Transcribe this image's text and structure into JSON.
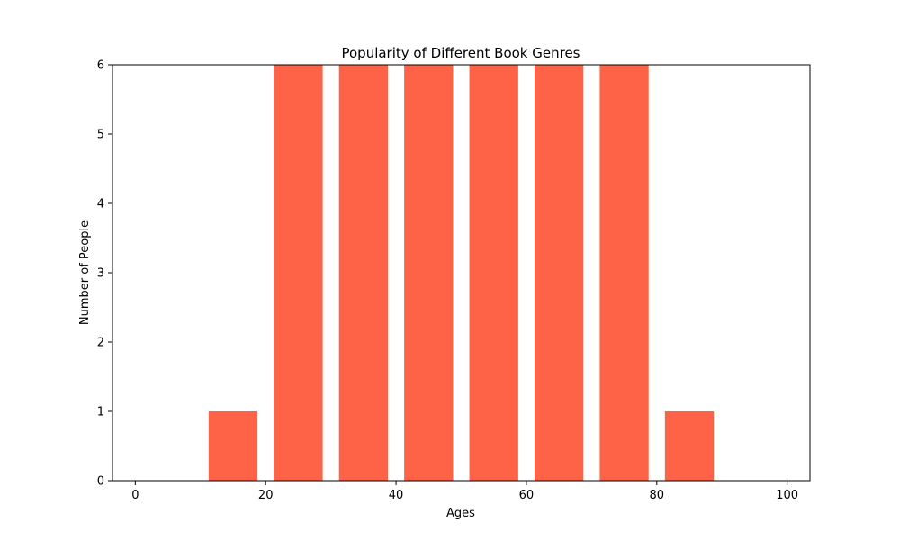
{
  "chart_data": {
    "type": "bar",
    "title": "Popularity of Different Book Genres",
    "xlabel": "Ages",
    "ylabel": "Number of People",
    "bins": [
      [
        0,
        10
      ],
      [
        10,
        20
      ],
      [
        20,
        30
      ],
      [
        30,
        40
      ],
      [
        40,
        50
      ],
      [
        50,
        60
      ],
      [
        60,
        70
      ],
      [
        70,
        80
      ],
      [
        80,
        90
      ],
      [
        90,
        100
      ]
    ],
    "values": [
      0,
      1,
      6,
      6,
      6,
      6,
      6,
      6,
      1,
      0
    ],
    "xlim": [
      -3.5,
      103.5
    ],
    "ylim": [
      0,
      6
    ],
    "x_ticks": [
      0,
      20,
      40,
      60,
      80,
      100
    ],
    "y_ticks": [
      0,
      1,
      2,
      3,
      4,
      5,
      6
    ],
    "bar_color": "#ff6347",
    "grid": false,
    "legend": false
  }
}
